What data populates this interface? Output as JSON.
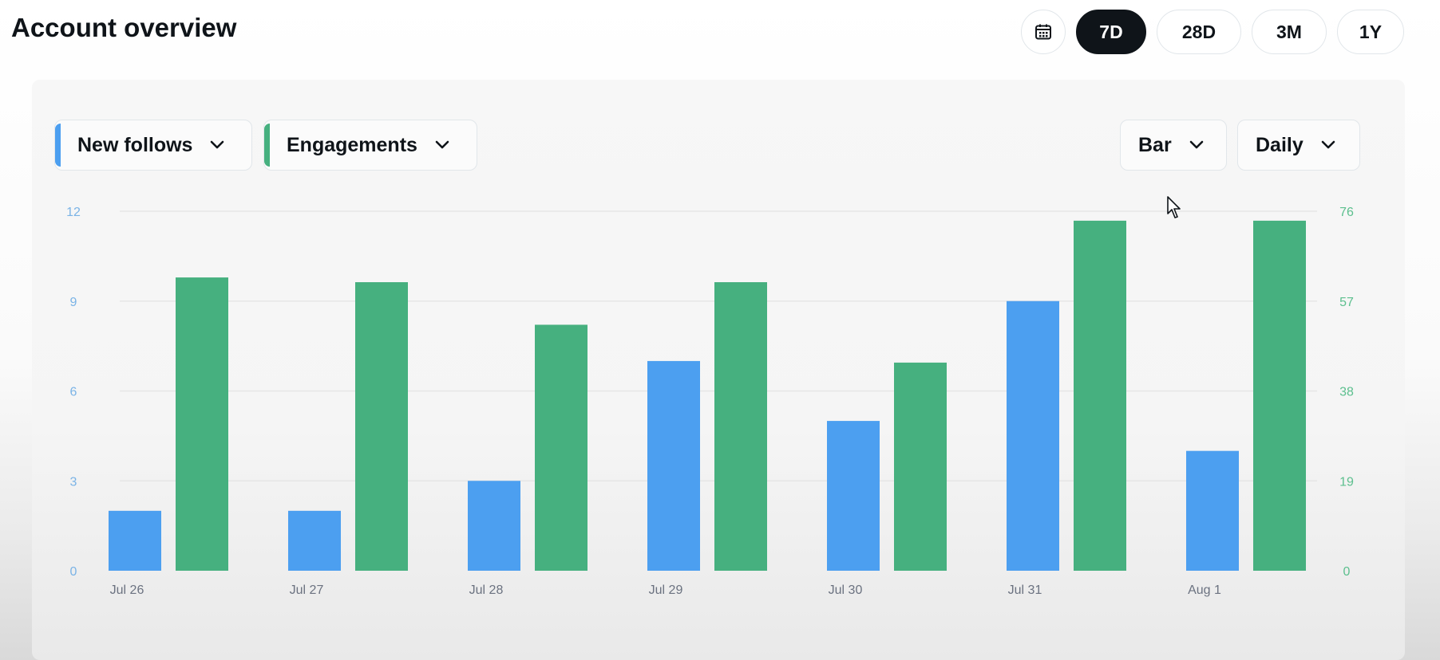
{
  "header": {
    "title": "Account overview"
  },
  "range": {
    "calendar_icon": "calendar-icon",
    "options": [
      "7D",
      "28D",
      "3M",
      "1Y"
    ],
    "selected": "7D"
  },
  "controls": {
    "metric_left": "New follows",
    "metric_right": "Engagements",
    "chart_type": "Bar",
    "interval": "Daily"
  },
  "colors": {
    "follows": "#4c9ff0",
    "engagements": "#46b07f",
    "left_axis_text": "#7ab3e6",
    "right_axis_text": "#5cbf8e"
  },
  "chart_data": {
    "type": "bar",
    "categories": [
      "Jul 26",
      "Jul 27",
      "Jul 28",
      "Jul 29",
      "Jul 30",
      "Jul 31",
      "Aug 1"
    ],
    "series": [
      {
        "name": "New follows",
        "axis": "left",
        "values": [
          2,
          2,
          3,
          7,
          5,
          9,
          4
        ]
      },
      {
        "name": "Engagements",
        "axis": "right",
        "values": [
          62,
          61,
          52,
          61,
          44,
          74,
          74
        ]
      }
    ],
    "y_left": {
      "ticks": [
        "0",
        "3",
        "6",
        "9",
        "12"
      ],
      "ylim": [
        0,
        12
      ]
    },
    "y_right": {
      "ticks": [
        "0",
        "19",
        "38",
        "57",
        "76"
      ],
      "ylim": [
        0,
        76
      ]
    },
    "grid": true
  }
}
